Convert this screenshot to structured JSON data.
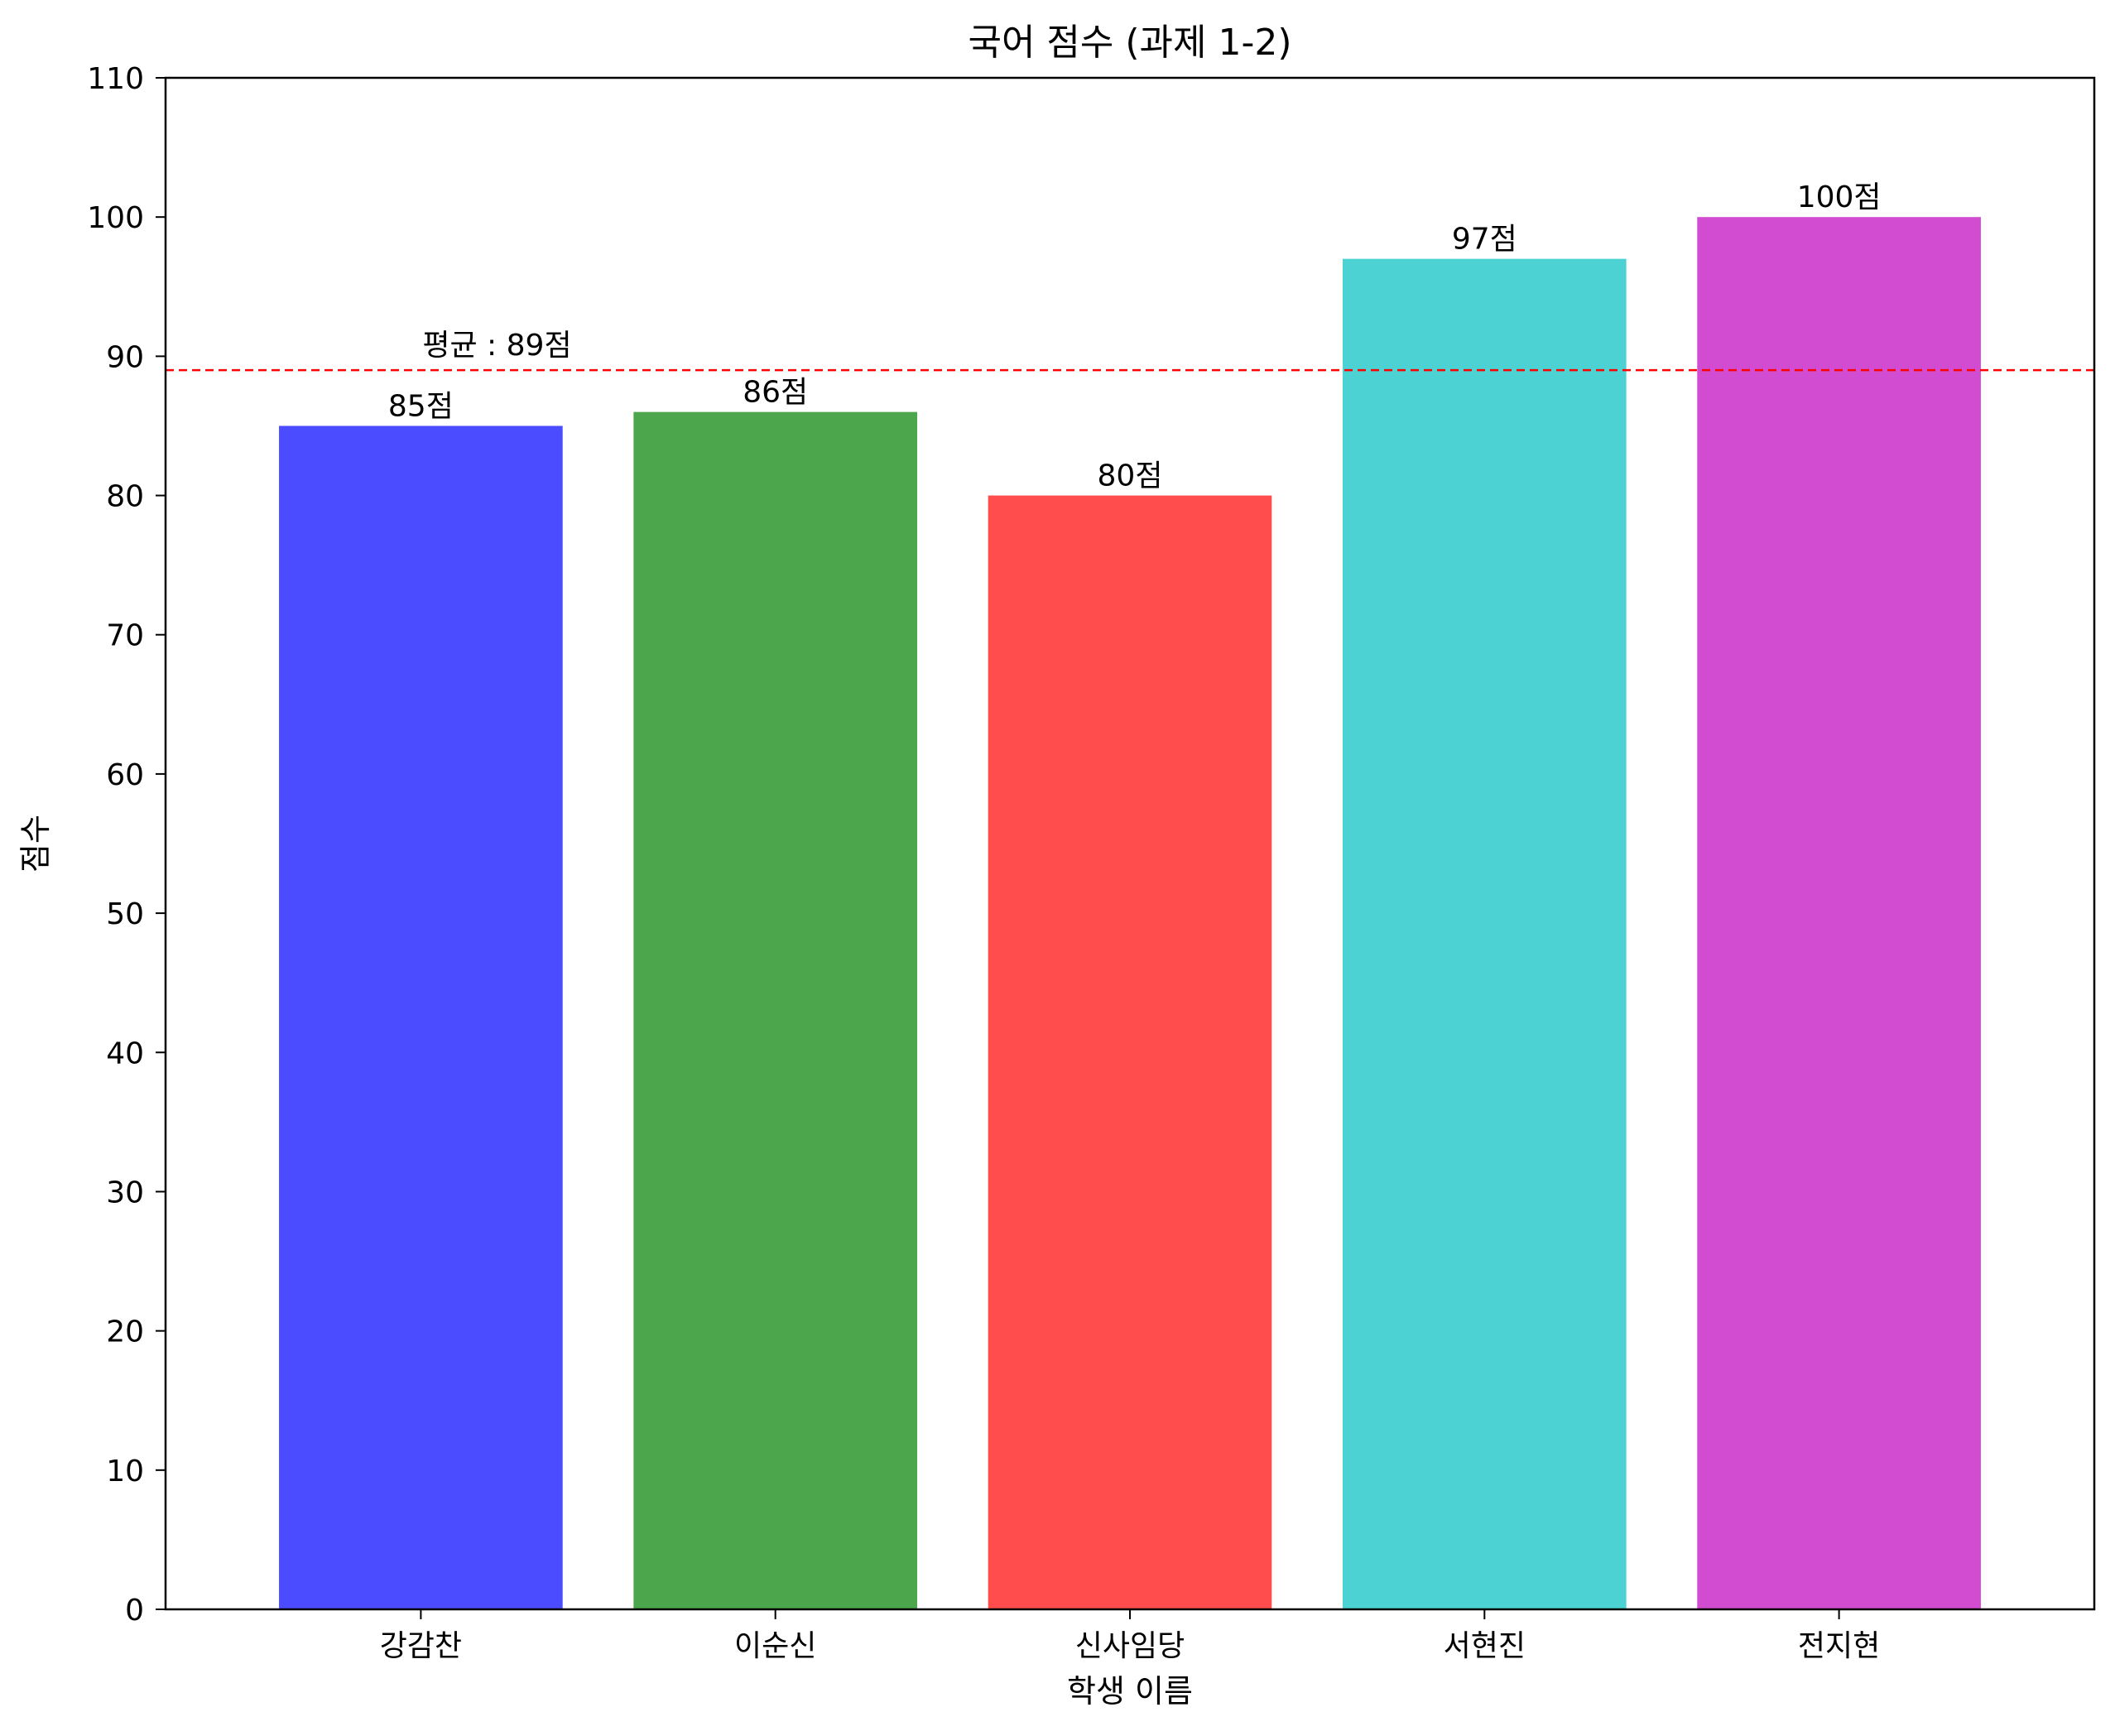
{
  "chart_data": {
    "type": "bar",
    "title": "국어 점수 (과제 1-2)",
    "xlabel": "학생 이름",
    "ylabel": "점수",
    "categories": [
      "강감찬",
      "이순신",
      "신사임당",
      "서현진",
      "전지현"
    ],
    "values": [
      85,
      86,
      80,
      97,
      100
    ],
    "value_labels": [
      "85점",
      "86점",
      "80점",
      "97점",
      "100점"
    ],
    "colors": [
      "#4b4bff",
      "#4ca64c",
      "#ff4c4c",
      "#4cd2d2",
      "#d24cd2"
    ],
    "ylim": [
      0,
      110
    ],
    "yticks": [
      0,
      10,
      20,
      30,
      40,
      50,
      60,
      70,
      80,
      90,
      100,
      110
    ],
    "ytick_labels": [
      "0",
      "10",
      "20",
      "30",
      "40",
      "50",
      "60",
      "70",
      "80",
      "90",
      "100",
      "110"
    ],
    "average": {
      "value": 89,
      "label": "평균 : 89점",
      "color": "#ff0000",
      "style": "dashed"
    },
    "grid": false,
    "legend": "none"
  }
}
